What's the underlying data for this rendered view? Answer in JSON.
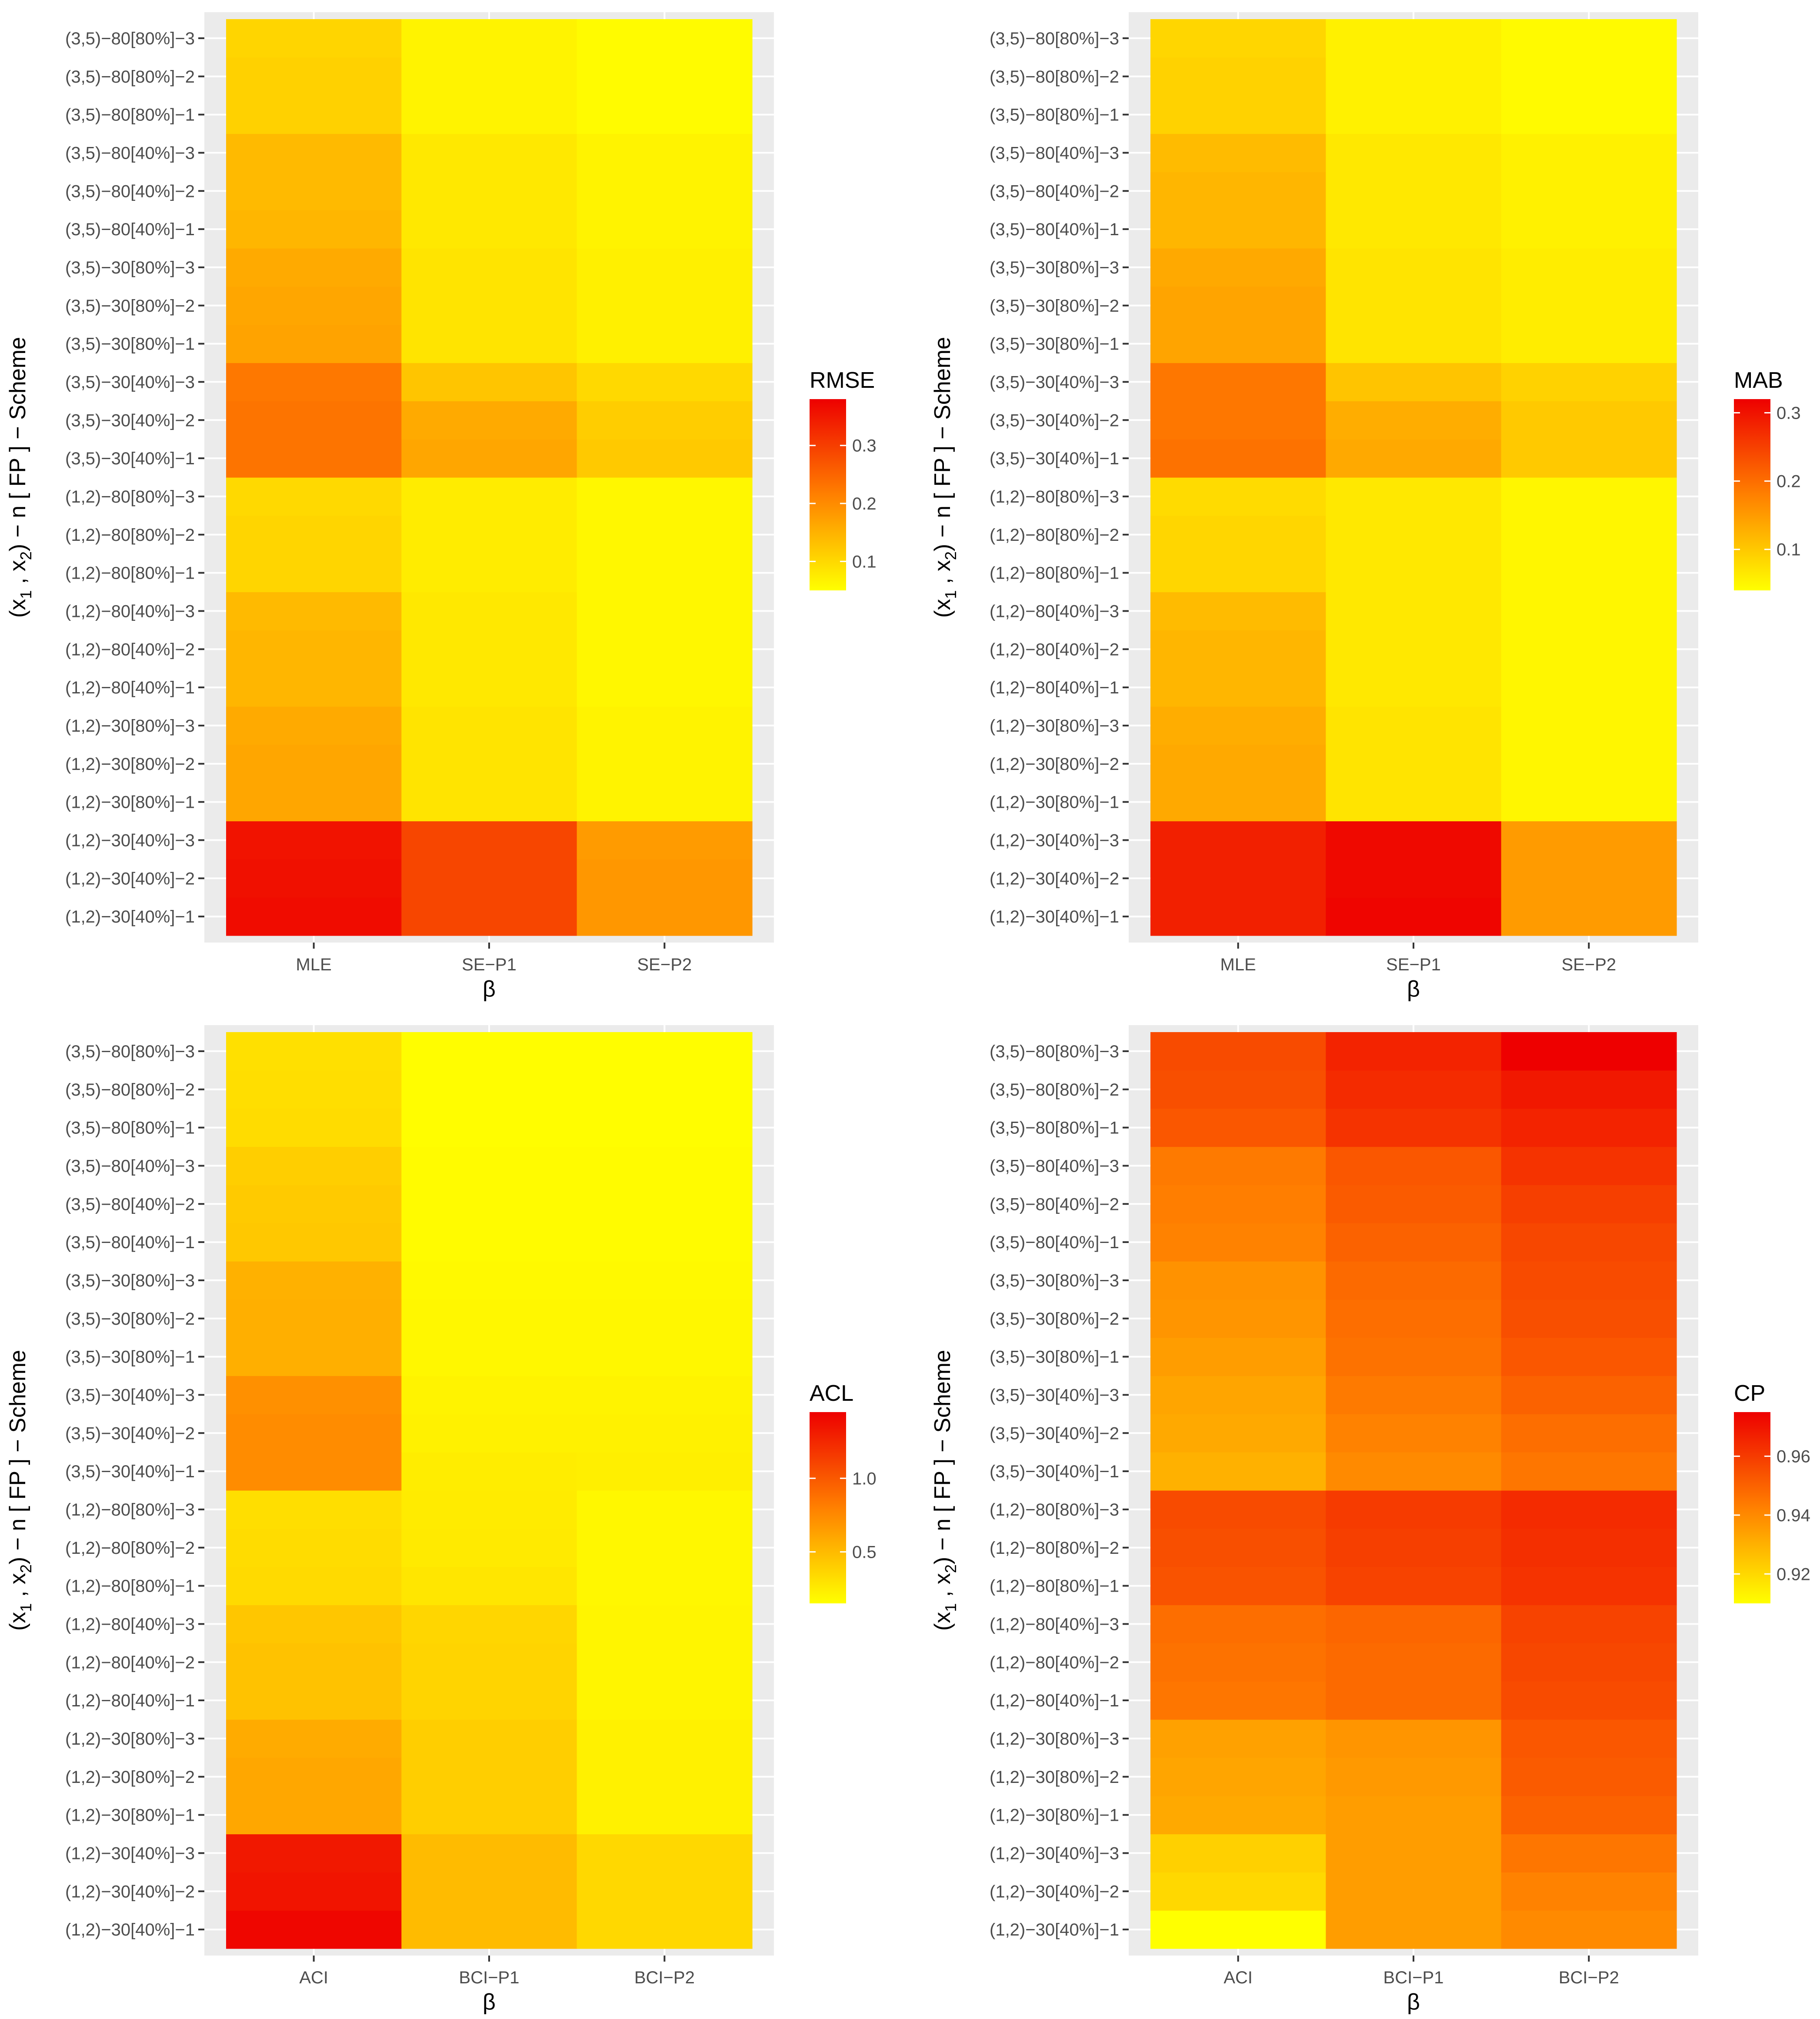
{
  "figure": {
    "y_axis_title_main": "(x",
    "y_axis_title_sub1": "1",
    "y_axis_title_mid": " , x",
    "y_axis_title_sub2": "2",
    "y_axis_title_tail": ") − n [ FP ] − Scheme"
  },
  "chart_data": [
    {
      "type": "heatmap",
      "title": "",
      "xlabel": "β",
      "ylabel": "(x1 , x2) − n [ FP ] − Scheme",
      "x_categories": [
        "MLE",
        "SE−P1",
        "SE−P2"
      ],
      "y_categories": [
        "(1,2)−30[40%]−1",
        "(1,2)−30[40%]−2",
        "(1,2)−30[40%]−3",
        "(1,2)−30[80%]−1",
        "(1,2)−30[80%]−2",
        "(1,2)−30[80%]−3",
        "(1,2)−80[40%]−1",
        "(1,2)−80[40%]−2",
        "(1,2)−80[40%]−3",
        "(1,2)−80[80%]−1",
        "(1,2)−80[80%]−2",
        "(1,2)−80[80%]−3",
        "(3,5)−30[40%]−1",
        "(3,5)−30[40%]−2",
        "(3,5)−30[40%]−3",
        "(3,5)−30[80%]−1",
        "(3,5)−30[80%]−2",
        "(3,5)−30[80%]−3",
        "(3,5)−80[40%]−1",
        "(3,5)−80[40%]−2",
        "(3,5)−80[40%]−3",
        "(3,5)−80[80%]−1",
        "(3,5)−80[80%]−2",
        "(3,5)−80[80%]−3"
      ],
      "legend": {
        "title": "RMSE",
        "breaks": [
          0.1,
          0.2,
          0.3
        ],
        "break_labels": [
          "0.1",
          "0.2",
          "0.3"
        ],
        "range": [
          0.05,
          0.38
        ],
        "low_color": "#FFFF00",
        "high_color": "#EE0000",
        "position": "right"
      },
      "values": [
        [
          0.365,
          0.29,
          0.185
        ],
        [
          0.36,
          0.29,
          0.185
        ],
        [
          0.355,
          0.29,
          0.18
        ],
        [
          0.165,
          0.085,
          0.065
        ],
        [
          0.165,
          0.085,
          0.065
        ],
        [
          0.16,
          0.085,
          0.065
        ],
        [
          0.145,
          0.08,
          0.06
        ],
        [
          0.145,
          0.08,
          0.06
        ],
        [
          0.14,
          0.08,
          0.06
        ],
        [
          0.105,
          0.075,
          0.06
        ],
        [
          0.105,
          0.075,
          0.06
        ],
        [
          0.1,
          0.075,
          0.06
        ],
        [
          0.23,
          0.165,
          0.12
        ],
        [
          0.23,
          0.16,
          0.115
        ],
        [
          0.225,
          0.125,
          0.1
        ],
        [
          0.17,
          0.085,
          0.07
        ],
        [
          0.165,
          0.085,
          0.07
        ],
        [
          0.16,
          0.085,
          0.07
        ],
        [
          0.145,
          0.08,
          0.065
        ],
        [
          0.14,
          0.08,
          0.065
        ],
        [
          0.14,
          0.08,
          0.065
        ],
        [
          0.11,
          0.065,
          0.055
        ],
        [
          0.11,
          0.065,
          0.055
        ],
        [
          0.105,
          0.065,
          0.055
        ]
      ]
    },
    {
      "type": "heatmap",
      "title": "",
      "xlabel": "β",
      "ylabel": "(x1 , x2) − n [ FP ] − Scheme",
      "x_categories": [
        "MLE",
        "SE−P1",
        "SE−P2"
      ],
      "y_categories": [
        "(1,2)−30[40%]−1",
        "(1,2)−30[40%]−2",
        "(1,2)−30[40%]−3",
        "(1,2)−30[80%]−1",
        "(1,2)−30[80%]−2",
        "(1,2)−30[80%]−3",
        "(1,2)−80[40%]−1",
        "(1,2)−80[40%]−2",
        "(1,2)−80[40%]−3",
        "(1,2)−80[80%]−1",
        "(1,2)−80[80%]−2",
        "(1,2)−80[80%]−3",
        "(3,5)−30[40%]−1",
        "(3,5)−30[40%]−2",
        "(3,5)−30[40%]−3",
        "(3,5)−30[80%]−1",
        "(3,5)−30[80%]−2",
        "(3,5)−30[80%]−3",
        "(3,5)−80[40%]−1",
        "(3,5)−80[40%]−2",
        "(3,5)−80[40%]−3",
        "(3,5)−80[80%]−1",
        "(3,5)−80[80%]−2",
        "(3,5)−80[80%]−3"
      ],
      "legend": {
        "title": "MAB",
        "breaks": [
          0.1,
          0.2,
          0.3
        ],
        "break_labels": [
          "0.1",
          "0.2",
          "0.3"
        ],
        "range": [
          0.04,
          0.32
        ],
        "low_color": "#FFFF00",
        "high_color": "#EE0000",
        "position": "right"
      },
      "values": [
        [
          0.285,
          0.315,
          0.15
        ],
        [
          0.285,
          0.31,
          0.15
        ],
        [
          0.285,
          0.31,
          0.15
        ],
        [
          0.135,
          0.07,
          0.05
        ],
        [
          0.135,
          0.07,
          0.05
        ],
        [
          0.13,
          0.07,
          0.05
        ],
        [
          0.12,
          0.065,
          0.05
        ],
        [
          0.12,
          0.065,
          0.05
        ],
        [
          0.115,
          0.065,
          0.05
        ],
        [
          0.085,
          0.065,
          0.05
        ],
        [
          0.085,
          0.065,
          0.05
        ],
        [
          0.08,
          0.065,
          0.05
        ],
        [
          0.195,
          0.135,
          0.1
        ],
        [
          0.19,
          0.13,
          0.1
        ],
        [
          0.19,
          0.105,
          0.09
        ],
        [
          0.14,
          0.07,
          0.06
        ],
        [
          0.14,
          0.07,
          0.06
        ],
        [
          0.135,
          0.07,
          0.06
        ],
        [
          0.12,
          0.065,
          0.055
        ],
        [
          0.12,
          0.065,
          0.055
        ],
        [
          0.115,
          0.065,
          0.055
        ],
        [
          0.09,
          0.055,
          0.045
        ],
        [
          0.09,
          0.055,
          0.045
        ],
        [
          0.085,
          0.055,
          0.045
        ]
      ]
    },
    {
      "type": "heatmap",
      "title": "",
      "xlabel": "β",
      "ylabel": "(x1 , x2) − n [ FP ] − Scheme",
      "x_categories": [
        "ACI",
        "BCI−P1",
        "BCI−P2"
      ],
      "y_categories": [
        "(1,2)−30[40%]−1",
        "(1,2)−30[40%]−2",
        "(1,2)−30[40%]−3",
        "(1,2)−30[80%]−1",
        "(1,2)−30[80%]−2",
        "(1,2)−30[80%]−3",
        "(1,2)−80[40%]−1",
        "(1,2)−80[40%]−2",
        "(1,2)−80[40%]−3",
        "(1,2)−80[80%]−1",
        "(1,2)−80[80%]−2",
        "(1,2)−80[80%]−3",
        "(3,5)−30[40%]−1",
        "(3,5)−30[40%]−2",
        "(3,5)−30[40%]−3",
        "(3,5)−30[80%]−1",
        "(3,5)−30[80%]−2",
        "(3,5)−30[80%]−3",
        "(3,5)−80[40%]−1",
        "(3,5)−80[40%]−2",
        "(3,5)−80[40%]−3",
        "(3,5)−80[80%]−1",
        "(3,5)−80[80%]−2",
        "(3,5)−80[80%]−3"
      ],
      "legend": {
        "title": "ACL",
        "breaks": [
          0.5,
          1.0
        ],
        "break_labels": [
          "0.5",
          "1.0"
        ],
        "range": [
          0.15,
          1.45
        ],
        "low_color": "#FFFF00",
        "high_color": "#EE0000",
        "position": "right"
      },
      "values": [
        [
          1.42,
          0.5,
          0.35
        ],
        [
          1.35,
          0.5,
          0.35
        ],
        [
          1.33,
          0.5,
          0.35
        ],
        [
          0.6,
          0.4,
          0.22
        ],
        [
          0.6,
          0.4,
          0.22
        ],
        [
          0.58,
          0.4,
          0.22
        ],
        [
          0.46,
          0.37,
          0.2
        ],
        [
          0.46,
          0.37,
          0.2
        ],
        [
          0.44,
          0.36,
          0.2
        ],
        [
          0.34,
          0.28,
          0.19
        ],
        [
          0.33,
          0.26,
          0.19
        ],
        [
          0.32,
          0.25,
          0.19
        ],
        [
          0.74,
          0.24,
          0.23
        ],
        [
          0.74,
          0.22,
          0.22
        ],
        [
          0.72,
          0.21,
          0.21
        ],
        [
          0.56,
          0.19,
          0.19
        ],
        [
          0.56,
          0.19,
          0.19
        ],
        [
          0.55,
          0.18,
          0.18
        ],
        [
          0.43,
          0.17,
          0.17
        ],
        [
          0.42,
          0.17,
          0.17
        ],
        [
          0.4,
          0.17,
          0.17
        ],
        [
          0.33,
          0.16,
          0.16
        ],
        [
          0.32,
          0.16,
          0.16
        ],
        [
          0.31,
          0.16,
          0.16
        ]
      ]
    },
    {
      "type": "heatmap",
      "title": "",
      "xlabel": "β",
      "ylabel": "(x1 , x2) − n [ FP ] − Scheme",
      "x_categories": [
        "ACI",
        "BCI−P1",
        "BCI−P2"
      ],
      "y_categories": [
        "(1,2)−30[40%]−1",
        "(1,2)−30[40%]−2",
        "(1,2)−30[40%]−3",
        "(1,2)−30[80%]−1",
        "(1,2)−30[80%]−2",
        "(1,2)−30[80%]−3",
        "(1,2)−80[40%]−1",
        "(1,2)−80[40%]−2",
        "(1,2)−80[40%]−3",
        "(1,2)−80[80%]−1",
        "(1,2)−80[80%]−2",
        "(1,2)−80[80%]−3",
        "(3,5)−30[40%]−1",
        "(3,5)−30[40%]−2",
        "(3,5)−30[40%]−3",
        "(3,5)−30[80%]−1",
        "(3,5)−30[80%]−2",
        "(3,5)−30[80%]−3",
        "(3,5)−80[40%]−1",
        "(3,5)−80[40%]−2",
        "(3,5)−80[40%]−3",
        "(3,5)−80[80%]−1",
        "(3,5)−80[80%]−2",
        "(3,5)−80[80%]−3"
      ],
      "legend": {
        "title": "CP",
        "breaks": [
          0.92,
          0.94,
          0.96
        ],
        "break_labels": [
          "0.92",
          "0.94",
          "0.96"
        ],
        "range": [
          0.91,
          0.975
        ],
        "low_color": "#FFFF00",
        "high_color": "#EE0000",
        "position": "right"
      },
      "values": [
        [
          0.91,
          0.935,
          0.94
        ],
        [
          0.92,
          0.935,
          0.942
        ],
        [
          0.922,
          0.935,
          0.945
        ],
        [
          0.932,
          0.935,
          0.95
        ],
        [
          0.933,
          0.936,
          0.952
        ],
        [
          0.934,
          0.937,
          0.953
        ],
        [
          0.945,
          0.948,
          0.956
        ],
        [
          0.946,
          0.948,
          0.957
        ],
        [
          0.947,
          0.949,
          0.958
        ],
        [
          0.954,
          0.958,
          0.962
        ],
        [
          0.955,
          0.959,
          0.963
        ],
        [
          0.956,
          0.96,
          0.964
        ],
        [
          0.93,
          0.94,
          0.945
        ],
        [
          0.932,
          0.942,
          0.947
        ],
        [
          0.933,
          0.944,
          0.95
        ],
        [
          0.935,
          0.946,
          0.953
        ],
        [
          0.937,
          0.947,
          0.955
        ],
        [
          0.938,
          0.948,
          0.956
        ],
        [
          0.942,
          0.95,
          0.957
        ],
        [
          0.943,
          0.952,
          0.959
        ],
        [
          0.944,
          0.953,
          0.962
        ],
        [
          0.953,
          0.962,
          0.966
        ],
        [
          0.955,
          0.964,
          0.969
        ],
        [
          0.956,
          0.966,
          0.975
        ]
      ]
    }
  ]
}
